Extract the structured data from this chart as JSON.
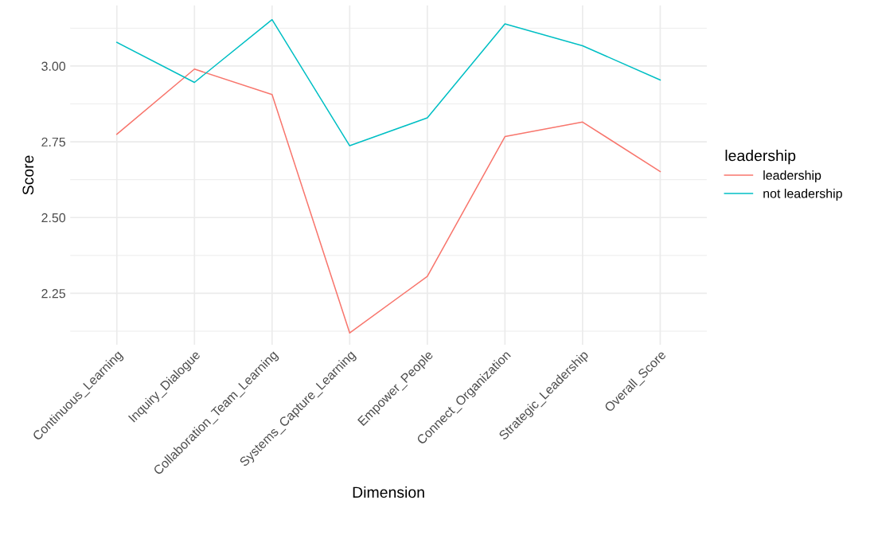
{
  "chart_data": {
    "type": "line",
    "xlabel": "Dimension",
    "ylabel": "Score",
    "legend_title": "leadership",
    "categories": [
      "Continuous_Learning",
      "Inquiry_Dialogue",
      "Collaboration_Team_Learning",
      "Systems_Capture_Learning",
      "Empower_People",
      "Connect_Organization",
      "Strategic_Leadership",
      "Overall_Score"
    ],
    "series": [
      {
        "name": "leadership",
        "color": "#f8766d",
        "values": [
          2.775,
          2.99,
          2.906,
          2.119,
          2.306,
          2.767,
          2.815,
          2.652
        ]
      },
      {
        "name": "not leadership",
        "color": "#00bfc4",
        "values": [
          3.078,
          2.946,
          3.153,
          2.737,
          2.829,
          3.139,
          3.067,
          2.954
        ]
      }
    ],
    "ylim": [
      2.08,
      3.2
    ],
    "yticks": [
      {
        "value": 2.125,
        "label": null
      },
      {
        "value": 2.25,
        "label": "2.25"
      },
      {
        "value": 2.375,
        "label": null
      },
      {
        "value": 2.5,
        "label": "2.50"
      },
      {
        "value": 2.625,
        "label": null
      },
      {
        "value": 2.75,
        "label": "2.75"
      },
      {
        "value": 2.875,
        "label": null
      },
      {
        "value": 3.0,
        "label": "3.00"
      },
      {
        "value": 3.125,
        "label": null
      }
    ],
    "grid": true,
    "legend": "right",
    "marker": "none",
    "line_style": "solid"
  }
}
